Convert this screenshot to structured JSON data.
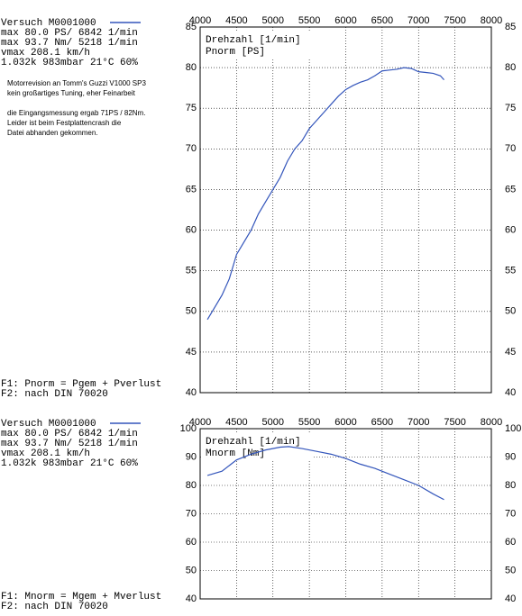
{
  "chart_data": [
    {
      "type": "line",
      "header": [
        "max   80.0 PS/   6842 1/min",
        "max   93.7 Nm/   5218 1/min",
        "vmax 208.1 km/h",
        "1.032k  983mbar 21°C 60%"
      ],
      "notes": [
        [
          "Motorrevision an Tomm's Guzzi V1000 SP3",
          "kein großartiges Tuning, eher Feinarbeit"
        ],
        [
          "die Eingangsmessung ergab 71PS / 82Nm.",
          "Leider ist beim Festplattencrash die",
          "Datei abhanden gekommen."
        ]
      ],
      "footer": [
        "F1: Pnorm = Pgem + Pverlust",
        "F2: nach DIN 70020"
      ],
      "xlabel": "Drehzahl [1/min]",
      "ylabel": "Pnorm [PS]",
      "x": [
        4100,
        4200,
        4300,
        4400,
        4500,
        4600,
        4700,
        4800,
        4900,
        5000,
        5100,
        5200,
        5300,
        5400,
        5500,
        5600,
        5700,
        5800,
        5900,
        6000,
        6100,
        6200,
        6300,
        6400,
        6500,
        6600,
        6700,
        6800,
        6900,
        7000,
        7100,
        7200,
        7300,
        7350
      ],
      "series": [
        {
          "name": "Versuch M0001000",
          "color": "#3355bb",
          "values": [
            49,
            50.5,
            52,
            54,
            57,
            58.5,
            60,
            62,
            63.5,
            65,
            66.5,
            68.5,
            70,
            71,
            72.5,
            73.5,
            74.5,
            75.5,
            76.5,
            77.3,
            77.8,
            78.2,
            78.5,
            79,
            79.6,
            79.7,
            79.8,
            80,
            79.9,
            79.5,
            79.4,
            79.3,
            79,
            78.5
          ]
        }
      ],
      "xlim": [
        4000,
        8000
      ],
      "xticks": [
        4000,
        4500,
        5000,
        5500,
        6000,
        6500,
        7000,
        7500,
        8000
      ],
      "ylim": [
        40,
        85
      ],
      "yticks": [
        40,
        45,
        50,
        55,
        60,
        65,
        70,
        75,
        80,
        85
      ],
      "grid": true
    },
    {
      "type": "line",
      "header": [
        "max   80.0 PS/   6842 1/min",
        "max   93.7 Nm/   5218 1/min",
        "vmax 208.1 km/h",
        "1.032k  983mbar 21°C 60%"
      ],
      "footer": [
        "F1: Mnorm = Mgem + Mverlust",
        "F2: nach DIN 70020"
      ],
      "xlabel": "Drehzahl [1/min]",
      "ylabel": "Mnorm [Nm]",
      "x": [
        4100,
        4300,
        4500,
        4700,
        4900,
        5100,
        5218,
        5400,
        5600,
        5800,
        6000,
        6200,
        6400,
        6600,
        6800,
        7000,
        7200,
        7350
      ],
      "series": [
        {
          "name": "Versuch M0001000",
          "color": "#3355bb",
          "values": [
            83.5,
            85,
            89,
            91,
            92.5,
            93.5,
            93.7,
            93,
            92,
            91,
            89.5,
            87.5,
            86,
            84,
            82,
            80,
            77,
            75
          ]
        }
      ],
      "xlim": [
        4000,
        8000
      ],
      "xticks": [
        4000,
        4500,
        5000,
        5500,
        6000,
        6500,
        7000,
        7500,
        8000
      ],
      "ylim": [
        40,
        100
      ],
      "yticks": [
        40,
        50,
        60,
        70,
        80,
        90,
        100
      ],
      "grid": true
    }
  ]
}
